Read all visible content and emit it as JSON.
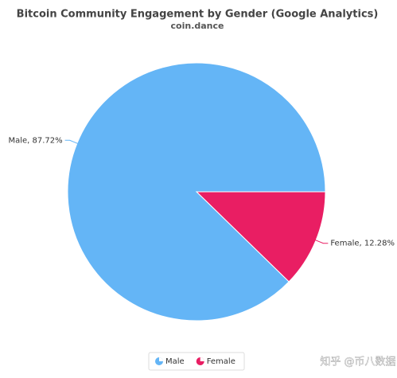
{
  "chart_data": {
    "type": "pie",
    "title": "Bitcoin Community Engagement by Gender (Google Analytics)",
    "subtitle": "coin.dance",
    "categories": [
      "Male",
      "Female"
    ],
    "values": [
      87.72,
      12.28
    ],
    "value_labels": [
      "Male, 87.72%",
      "Female, 12.28%"
    ],
    "colors": [
      "#64b5f6",
      "#e91e63"
    ],
    "legend": "bottom"
  },
  "watermark": "知乎 @币八数据"
}
